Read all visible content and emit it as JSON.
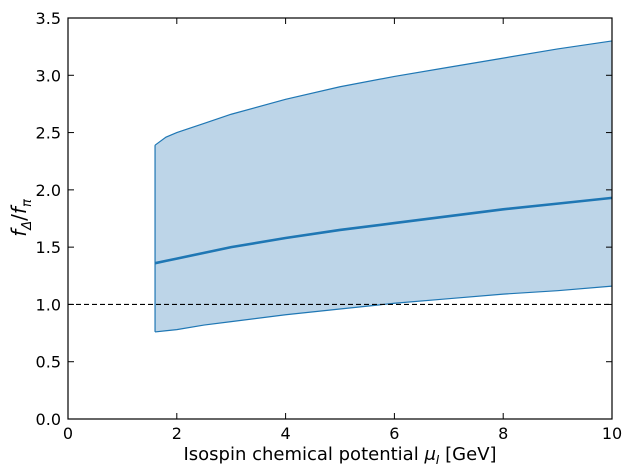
{
  "chart_data": {
    "type": "area",
    "xlabel": "Isospin chemical potential μ_I [GeV]",
    "xlabel_parts": {
      "prefix": "Isospin chemical potential ",
      "mu": "μ",
      "sub": "I",
      "suffix": " [GeV]"
    },
    "ylabel": "f_Δ/f_π",
    "ylabel_parts": {
      "f1": "f",
      "sub1": "Δ",
      "slash": "/",
      "f2": "f",
      "sub2": "π"
    },
    "xlim": [
      0,
      10
    ],
    "ylim": [
      0.0,
      3.5
    ],
    "x_ticks": [
      0,
      2,
      4,
      6,
      8,
      10
    ],
    "x_tick_labels": [
      "0",
      "2",
      "4",
      "6",
      "8",
      "10"
    ],
    "y_ticks": [
      0.0,
      0.5,
      1.0,
      1.5,
      2.0,
      2.5,
      3.0,
      3.5
    ],
    "y_tick_labels": [
      "0.0",
      "0.5",
      "1.0",
      "1.5",
      "2.0",
      "2.5",
      "3.0",
      "3.5"
    ],
    "grid": false,
    "reference_line": {
      "y": 1.0,
      "style": "dashed",
      "color": "#000000"
    },
    "band": {
      "color": "#1f77b4",
      "fill": "#bdd5e8",
      "x": [
        1.6,
        1.8,
        2.0,
        2.5,
        3.0,
        4.0,
        5.0,
        6.0,
        7.0,
        8.0,
        9.0,
        10.0
      ],
      "upper": [
        2.39,
        2.46,
        2.5,
        2.58,
        2.66,
        2.79,
        2.9,
        2.99,
        3.07,
        3.15,
        3.23,
        3.3
      ],
      "lower": [
        0.76,
        0.77,
        0.78,
        0.82,
        0.85,
        0.91,
        0.96,
        1.01,
        1.05,
        1.09,
        1.12,
        1.16
      ]
    },
    "series": [
      {
        "color": "#1f77b4",
        "x": [
          1.6,
          1.8,
          2.0,
          2.5,
          3.0,
          4.0,
          5.0,
          6.0,
          7.0,
          8.0,
          9.0,
          10.0
        ],
        "y": [
          1.36,
          1.38,
          1.4,
          1.45,
          1.5,
          1.58,
          1.65,
          1.71,
          1.77,
          1.83,
          1.88,
          1.93
        ]
      }
    ]
  }
}
